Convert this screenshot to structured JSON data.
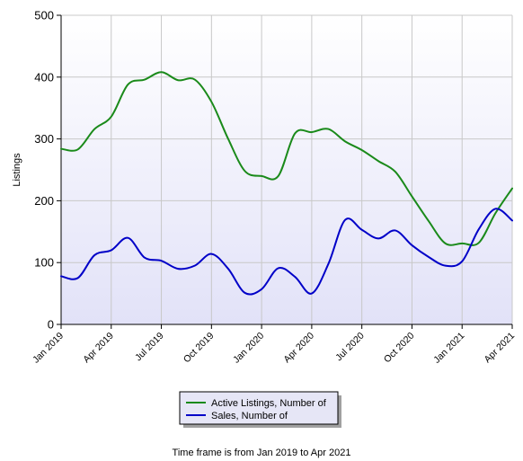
{
  "chart_data": {
    "type": "line",
    "ylabel": "Listings",
    "ylim": [
      0,
      500
    ],
    "yticks": [
      "0",
      "100",
      "200",
      "300",
      "400",
      "500"
    ],
    "xlim": [
      "2019-01",
      "2021-04"
    ],
    "xticks": [
      {
        "date": "2019-01",
        "label": "Jan 2019"
      },
      {
        "date": "2019-04",
        "label": "Apr 2019"
      },
      {
        "date": "2019-07",
        "label": "Jul 2019"
      },
      {
        "date": "2019-10",
        "label": "Oct 2019"
      },
      {
        "date": "2020-01",
        "label": "Jan 2020"
      },
      {
        "date": "2020-04",
        "label": "Apr 2020"
      },
      {
        "date": "2020-07",
        "label": "Jul 2020"
      },
      {
        "date": "2020-10",
        "label": "Oct 2020"
      },
      {
        "date": "2021-01",
        "label": "Jan 2021"
      },
      {
        "date": "2021-04",
        "label": "Apr 2021"
      }
    ],
    "x": [
      "2019-01",
      "2019-02",
      "2019-03",
      "2019-04",
      "2019-05",
      "2019-06",
      "2019-07",
      "2019-08",
      "2019-09",
      "2019-10",
      "2019-11",
      "2019-12",
      "2020-01",
      "2020-02",
      "2020-03",
      "2020-04",
      "2020-05",
      "2020-06",
      "2020-07",
      "2020-08",
      "2020-09",
      "2020-10",
      "2020-11",
      "2020-12",
      "2021-01",
      "2021-02",
      "2021-03",
      "2021-04"
    ],
    "series": [
      {
        "name": "Active Listings, Number of",
        "color": "#1a8a1a",
        "values": [
          284,
          283,
          316,
          336,
          388,
          396,
          408,
          395,
          396,
          360,
          300,
          248,
          240,
          240,
          309,
          311,
          316,
          296,
          282,
          264,
          247,
          207,
          167,
          131,
          131,
          132,
          180,
          220
        ]
      },
      {
        "name": "Sales, Number of",
        "color": "#0000c8",
        "values": [
          78,
          75,
          112,
          120,
          140,
          108,
          103,
          90,
          95,
          114,
          90,
          51,
          57,
          91,
          77,
          50,
          98,
          169,
          153,
          139,
          152,
          128,
          109,
          95,
          102,
          154,
          187,
          168
        ]
      }
    ],
    "grid": true,
    "legend_position": "bottom",
    "plot_background": [
      "#ffffff",
      "#e2e2f8"
    ]
  },
  "footer": {
    "note": "Time frame is from Jan 2019 to Apr 2021"
  }
}
